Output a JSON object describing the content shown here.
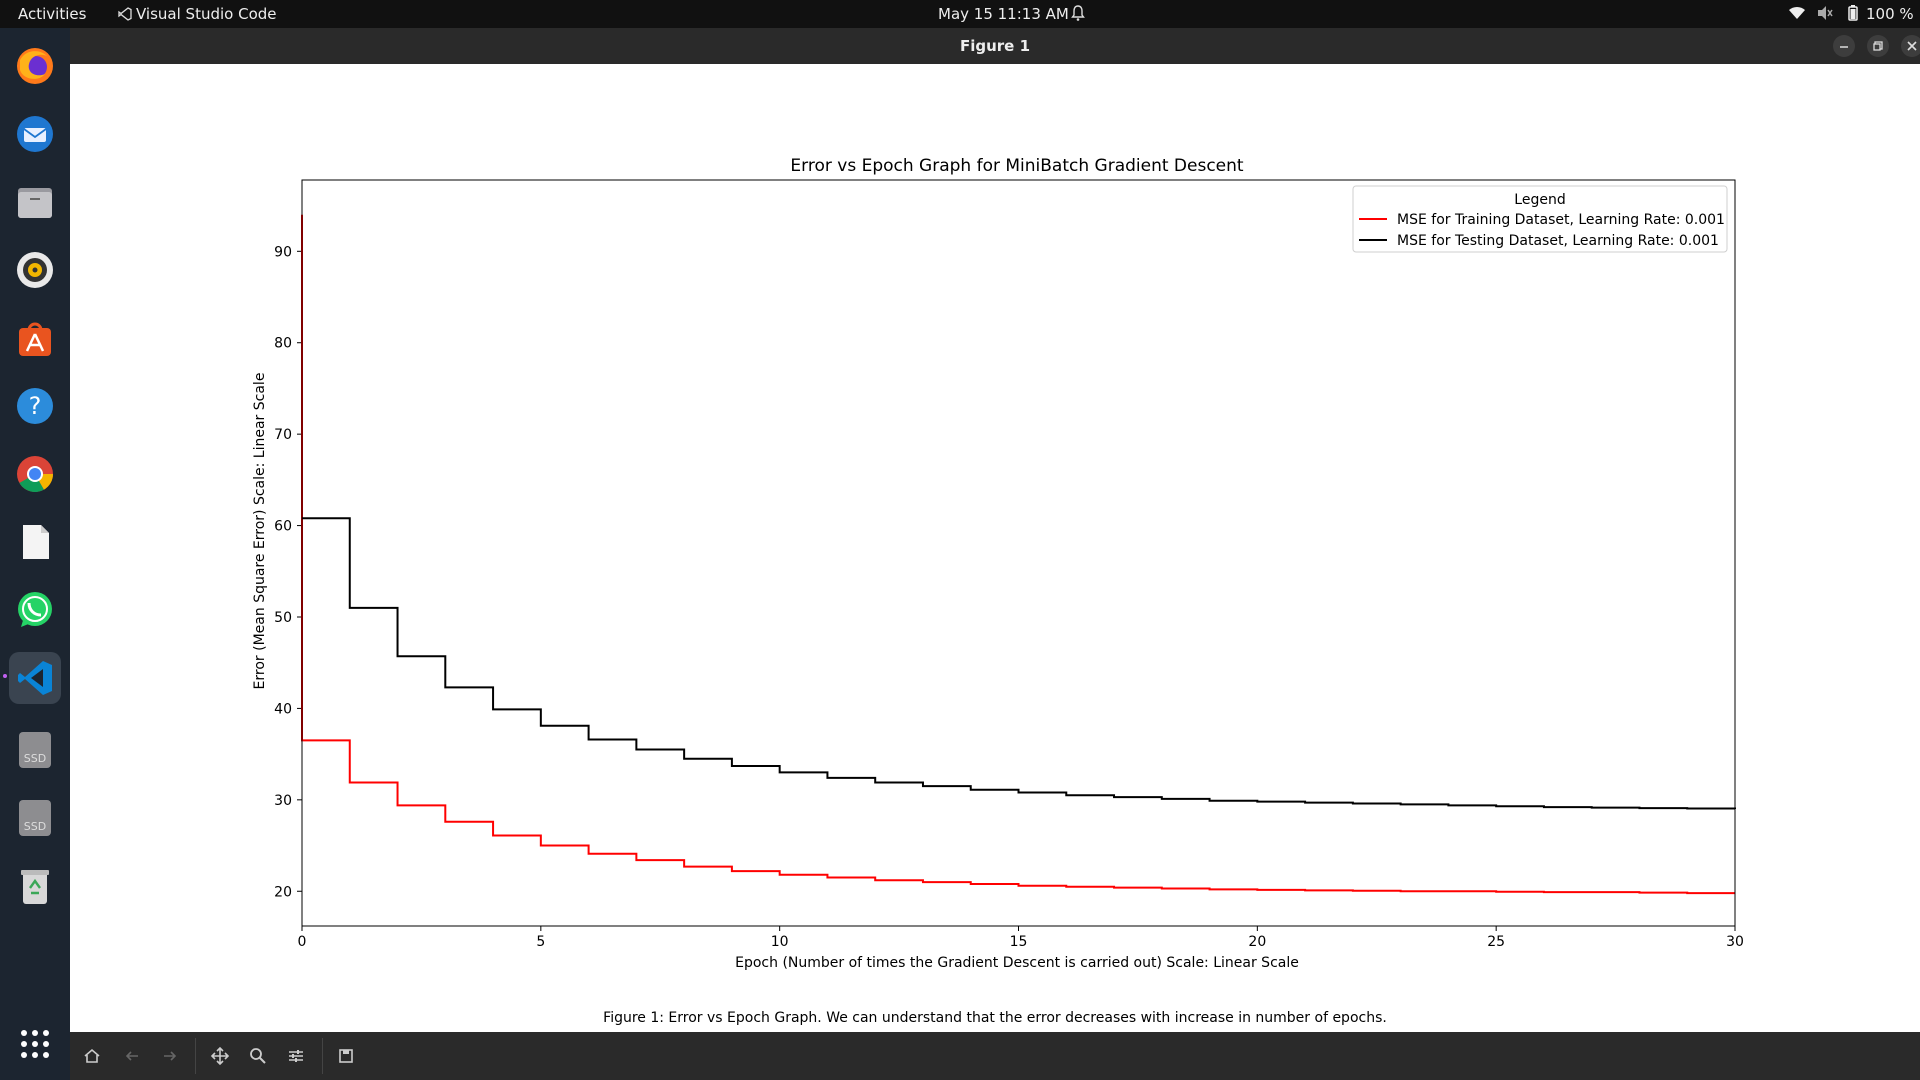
{
  "topbar": {
    "activities": "Activities",
    "app_name": "Visual Studio Code",
    "datetime": "May 15  11:13 AM",
    "battery": "100 %"
  },
  "window": {
    "title": "Figure 1"
  },
  "dock": {
    "items": [
      "firefox-icon",
      "thunderbird-icon",
      "files-icon",
      "rhythmbox-icon",
      "app-center-icon",
      "help-icon",
      "chrome-icon",
      "document-icon",
      "whatsapp-icon",
      "vscode-icon",
      "ssd-icon",
      "ssd-icon",
      "trash-icon",
      "show-apps-icon"
    ],
    "ssd_label": "SSD"
  },
  "figure": {
    "caption": "Figure 1: Error vs Epoch Graph. We can understand that the error decreases with increase in number of epochs."
  },
  "colors": {
    "training": "#ff0000",
    "testing": "#000000",
    "vscode_accent": "#0a84d6"
  },
  "chart_data": {
    "type": "line",
    "title": "Error vs Epoch Graph for MiniBatch Gradient Descent",
    "xlabel": "Epoch (Number of times the Gradient Descent is carried out) Scale: Linear Scale",
    "ylabel": "Error (Mean Square Error) Scale: Linear Scale",
    "xlim": [
      0,
      30
    ],
    "ylim": [
      16.2,
      97.8
    ],
    "xticks": [
      0,
      5,
      10,
      15,
      20,
      25,
      30
    ],
    "yticks": [
      20,
      30,
      40,
      50,
      60,
      70,
      80,
      90
    ],
    "legend": {
      "title": "Legend",
      "position": "upper right"
    },
    "grid": false,
    "series": [
      {
        "name": "MSE for Training Dataset, Learning Rate: 0.001",
        "color": "#ff0000",
        "step": true,
        "x": [
          0,
          1,
          2,
          3,
          4,
          5,
          6,
          7,
          8,
          9,
          10,
          11,
          12,
          13,
          14,
          15,
          16,
          17,
          18,
          19,
          20,
          21,
          22,
          23,
          24,
          25,
          26,
          27,
          28,
          29,
          30
        ],
        "y": [
          36.5,
          31.9,
          29.4,
          27.6,
          26.1,
          25.0,
          24.1,
          23.4,
          22.7,
          22.2,
          21.8,
          21.5,
          21.2,
          21.0,
          20.8,
          20.6,
          20.5,
          20.4,
          20.3,
          20.2,
          20.15,
          20.1,
          20.05,
          20.0,
          20.0,
          19.95,
          19.9,
          19.9,
          19.85,
          19.8,
          19.8
        ],
        "initial_spike": 94.0
      },
      {
        "name": "MSE for Testing Dataset, Learning Rate: 0.001",
        "color": "#000000",
        "step": true,
        "x": [
          0,
          1,
          2,
          3,
          4,
          5,
          6,
          7,
          8,
          9,
          10,
          11,
          12,
          13,
          14,
          15,
          16,
          17,
          18,
          19,
          20,
          21,
          22,
          23,
          24,
          25,
          26,
          27,
          28,
          29,
          30
        ],
        "y": [
          60.8,
          51.0,
          45.7,
          42.3,
          39.9,
          38.1,
          36.6,
          35.5,
          34.5,
          33.7,
          33.0,
          32.4,
          31.9,
          31.5,
          31.1,
          30.8,
          30.5,
          30.3,
          30.1,
          29.9,
          29.8,
          29.7,
          29.6,
          29.5,
          29.4,
          29.3,
          29.2,
          29.15,
          29.1,
          29.05,
          29.0
        ]
      }
    ]
  }
}
